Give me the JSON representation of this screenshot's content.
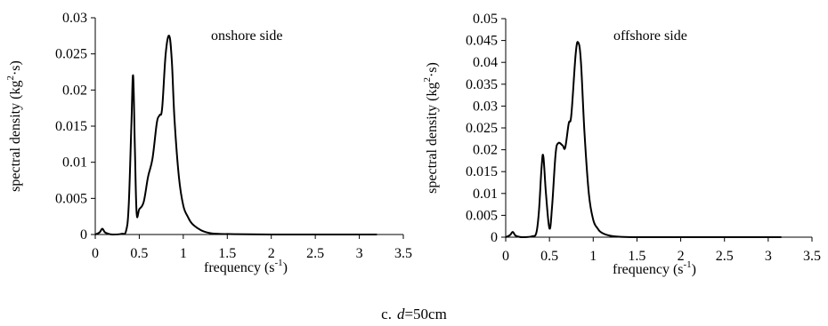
{
  "caption": {
    "prefix": "c.",
    "var": "d",
    "rest": "=50cm"
  },
  "chart_data": [
    {
      "type": "line",
      "annotation": "onshore side",
      "xlabel": {
        "main": "frequency (s",
        "sup": "-1",
        "end": ")"
      },
      "ylabel": {
        "main": "spectral density (kg",
        "sup": "2",
        "end": "·s)"
      },
      "xlim": [
        0,
        3.5
      ],
      "ylim": [
        0,
        0.03
      ],
      "xticks": [
        "0",
        "0.5",
        "1",
        "1.5",
        "2",
        "2.5",
        "3",
        "3.5"
      ],
      "yticks": [
        "0",
        "0.005",
        "0.01",
        "0.015",
        "0.02",
        "0.025",
        "0.03"
      ],
      "series": [
        {
          "x": [
            0,
            0.05,
            0.08,
            0.11,
            0.15,
            0.2,
            0.3,
            0.35,
            0.38,
            0.41,
            0.43,
            0.45,
            0.47,
            0.5,
            0.55,
            0.6,
            0.65,
            0.7,
            0.73,
            0.76,
            0.8,
            0.84,
            0.87,
            0.9,
            0.95,
            1.0,
            1.05,
            1.1,
            1.2,
            1.3,
            1.4,
            1.6,
            2.0,
            2.5,
            3.0,
            3.2
          ],
          "y": [
            0,
            0.0003,
            0.0008,
            0.0003,
            0.0001,
            0,
            0.0001,
            0.0005,
            0.004,
            0.015,
            0.022,
            0.012,
            0.003,
            0.0035,
            0.0045,
            0.008,
            0.0105,
            0.0155,
            0.0165,
            0.0175,
            0.025,
            0.0275,
            0.024,
            0.016,
            0.008,
            0.004,
            0.0025,
            0.0015,
            0.0006,
            0.0002,
            0.0001,
            5e-05,
            0,
            0,
            0,
            0
          ]
        }
      ]
    },
    {
      "type": "line",
      "annotation": "offshore side",
      "xlabel": {
        "main": "frequency (s",
        "sup": "-1",
        "end": ")"
      },
      "ylabel": {
        "main": "spectral density (kg",
        "sup": "2",
        "end": "·s)"
      },
      "xlim": [
        0,
        3.5
      ],
      "ylim": [
        0,
        0.05
      ],
      "xticks": [
        "0",
        "0.5",
        "1",
        "1.5",
        "2",
        "2.5",
        "3",
        "3.5"
      ],
      "yticks": [
        "0",
        "0.005",
        "0.01",
        "0.015",
        "0.02",
        "0.025",
        "0.03",
        "0.035",
        "0.04",
        "0.045",
        "0.05"
      ],
      "series": [
        {
          "x": [
            0,
            0.05,
            0.08,
            0.11,
            0.15,
            0.2,
            0.3,
            0.35,
            0.38,
            0.41,
            0.43,
            0.46,
            0.5,
            0.53,
            0.57,
            0.6,
            0.65,
            0.68,
            0.72,
            0.75,
            0.8,
            0.83,
            0.86,
            0.9,
            0.95,
            1.0,
            1.05,
            1.1,
            1.2,
            1.3,
            1.5,
            2.0,
            2.5,
            3.0,
            3.15
          ],
          "y": [
            0,
            0.0005,
            0.0012,
            0.0004,
            0.0001,
            0,
            0.0002,
            0.001,
            0.006,
            0.016,
            0.0185,
            0.01,
            0.002,
            0.007,
            0.019,
            0.0215,
            0.021,
            0.0205,
            0.026,
            0.028,
            0.042,
            0.0445,
            0.04,
            0.024,
            0.01,
            0.004,
            0.002,
            0.001,
            0.0003,
            0.0001,
            0,
            0,
            0,
            0,
            0
          ]
        }
      ]
    }
  ]
}
